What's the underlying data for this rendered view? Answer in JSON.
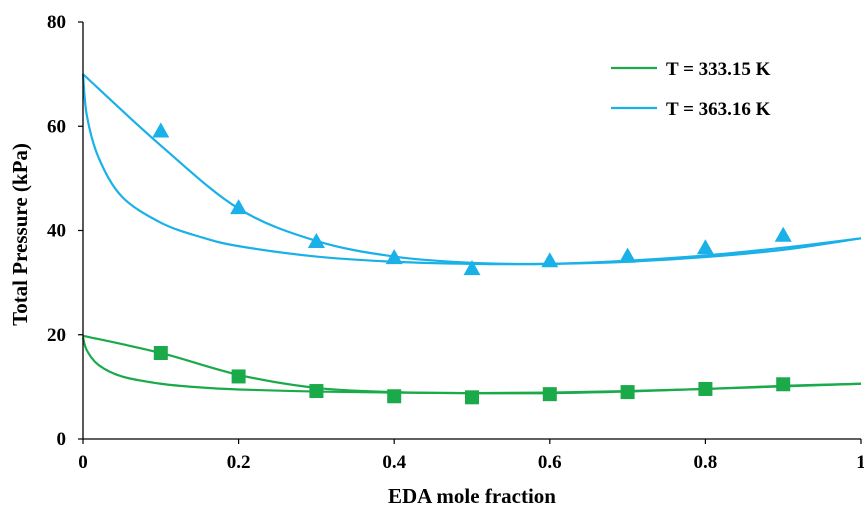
{
  "chart_data": {
    "type": "scatter",
    "xlabel": "EDA mole fraction",
    "ylabel": "Total Pressure (kPa)",
    "xlim": [
      0,
      1
    ],
    "ylim": [
      0,
      80
    ],
    "x_ticks": [
      "0",
      "0.2",
      "0.4",
      "0.6",
      "0.8",
      "1"
    ],
    "y_ticks": [
      "0",
      "20",
      "40",
      "60",
      "80"
    ],
    "grid": false,
    "legend_position": "top-right",
    "series": [
      {
        "name": "T = 333.15 K",
        "color": "#1aaa4a",
        "marker": "square",
        "points": {
          "x": [
            0.1,
            0.2,
            0.3,
            0.4,
            0.5,
            0.6,
            0.7,
            0.8,
            0.9
          ],
          "y": [
            16.5,
            12.0,
            9.2,
            8.2,
            8.0,
            8.6,
            9.0,
            9.6,
            10.5
          ]
        },
        "bubble_curve": {
          "x": [
            0,
            0.005,
            0.02,
            0.05,
            0.1,
            0.15,
            0.2,
            0.3,
            0.4,
            0.5,
            0.6,
            0.7,
            0.8,
            0.9,
            1.0
          ],
          "y": [
            19.5,
            17.0,
            14.2,
            12.0,
            10.6,
            9.9,
            9.5,
            9.1,
            8.9,
            8.8,
            8.9,
            9.2,
            9.6,
            10.1,
            10.6
          ]
        },
        "dew_curve": {
          "x": [
            0,
            0.1,
            0.2,
            0.3,
            0.4,
            0.5,
            0.6,
            0.7,
            0.8,
            0.9,
            1.0
          ],
          "y": [
            19.8,
            16.5,
            12.3,
            9.8,
            9.0,
            8.8,
            8.8,
            9.1,
            9.6,
            10.2,
            10.6
          ]
        }
      },
      {
        "name": "T = 363.16 K",
        "color": "#1ab0e8",
        "marker": "triangle",
        "points": {
          "x": [
            0.1,
            0.2,
            0.3,
            0.4,
            0.5,
            0.6,
            0.7,
            0.8,
            0.9
          ],
          "y": [
            59.0,
            44.3,
            37.8,
            34.7,
            32.6,
            34.1,
            35.0,
            36.6,
            39.0
          ]
        },
        "bubble_curve": {
          "x": [
            0,
            0.005,
            0.02,
            0.05,
            0.1,
            0.15,
            0.2,
            0.3,
            0.4,
            0.5,
            0.6,
            0.7,
            0.8,
            0.9,
            1.0
          ],
          "y": [
            70.0,
            62.0,
            54.0,
            46.5,
            41.5,
            38.8,
            37.0,
            35.0,
            34.0,
            33.6,
            33.6,
            34.0,
            34.9,
            36.3,
            38.5
          ]
        },
        "dew_curve": {
          "x": [
            0,
            0.1,
            0.2,
            0.3,
            0.4,
            0.5,
            0.6,
            0.7,
            0.8,
            0.9,
            1.0
          ],
          "y": [
            70.0,
            56.3,
            44.2,
            38.0,
            35.0,
            33.8,
            33.6,
            34.2,
            35.2,
            36.7,
            38.5
          ]
        }
      }
    ]
  }
}
